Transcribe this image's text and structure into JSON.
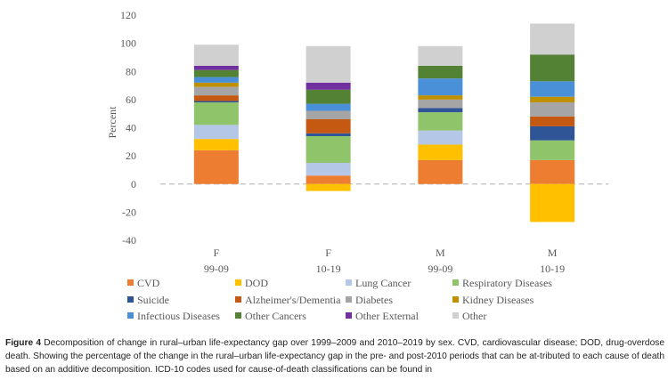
{
  "chart_data": {
    "type": "bar",
    "stacked": true,
    "ylabel": "Percent",
    "ylim": [
      -40,
      120
    ],
    "yticks": [
      -40,
      -20,
      0,
      20,
      40,
      60,
      80,
      100,
      120
    ],
    "zero_line": "dashed",
    "grid": false,
    "legend_position": "bottom",
    "categories": [
      {
        "sex": "F",
        "period": "99-09"
      },
      {
        "sex": "F",
        "period": "10-19"
      },
      {
        "sex": "M",
        "period": "99-09"
      },
      {
        "sex": "M",
        "period": "10-19"
      }
    ],
    "series": [
      {
        "name": "CVD",
        "color": "#ED7D31",
        "values": [
          24,
          6,
          17,
          17
        ]
      },
      {
        "name": "DOD",
        "color": "#FFC000",
        "values": [
          8,
          -5,
          11,
          -27
        ]
      },
      {
        "name": "Lung Cancer",
        "color": "#B4C7E7",
        "values": [
          10,
          9,
          10,
          0
        ]
      },
      {
        "name": "Respiratory Diseases",
        "color": "#8FC46A",
        "values": [
          16,
          19,
          13,
          14
        ]
      },
      {
        "name": "Suicide",
        "color": "#2F5597",
        "values": [
          1,
          2,
          3,
          10
        ]
      },
      {
        "name": "Alzheimer's/Dementia",
        "color": "#C65911",
        "values": [
          4,
          10,
          0,
          7
        ]
      },
      {
        "name": "Diabetes",
        "color": "#A5A5A5",
        "values": [
          6,
          6,
          6,
          10
        ]
      },
      {
        "name": "Kidney Diseases",
        "color": "#BF9000",
        "values": [
          3,
          0,
          3,
          4
        ]
      },
      {
        "name": "Infectious Diseases",
        "color": "#4A90D9",
        "values": [
          4,
          5,
          12,
          11
        ]
      },
      {
        "name": "Other Cancers",
        "color": "#548235",
        "values": [
          5,
          10,
          9,
          19
        ]
      },
      {
        "name": "Other External",
        "color": "#7030A0",
        "values": [
          3,
          5,
          0,
          0
        ]
      },
      {
        "name": "Other",
        "color": "#D0D0D0",
        "values": [
          15,
          26,
          14,
          22
        ]
      }
    ]
  },
  "caption": {
    "figure_label": "Figure 4",
    "text": "Decomposition of change in rural–urban life-expectancy gap over 1999–2009 and 2010–2019 by sex. CVD, cardiovascular disease; DOD, drug-overdose death. Showing the percentage of the change in the rural–urban life-expectancy gap in the pre- and post-2010 periods that can be at-tributed to each cause of death based on an additive decomposition. ICD-10 codes used for cause-of-death classifications can be found in"
  }
}
